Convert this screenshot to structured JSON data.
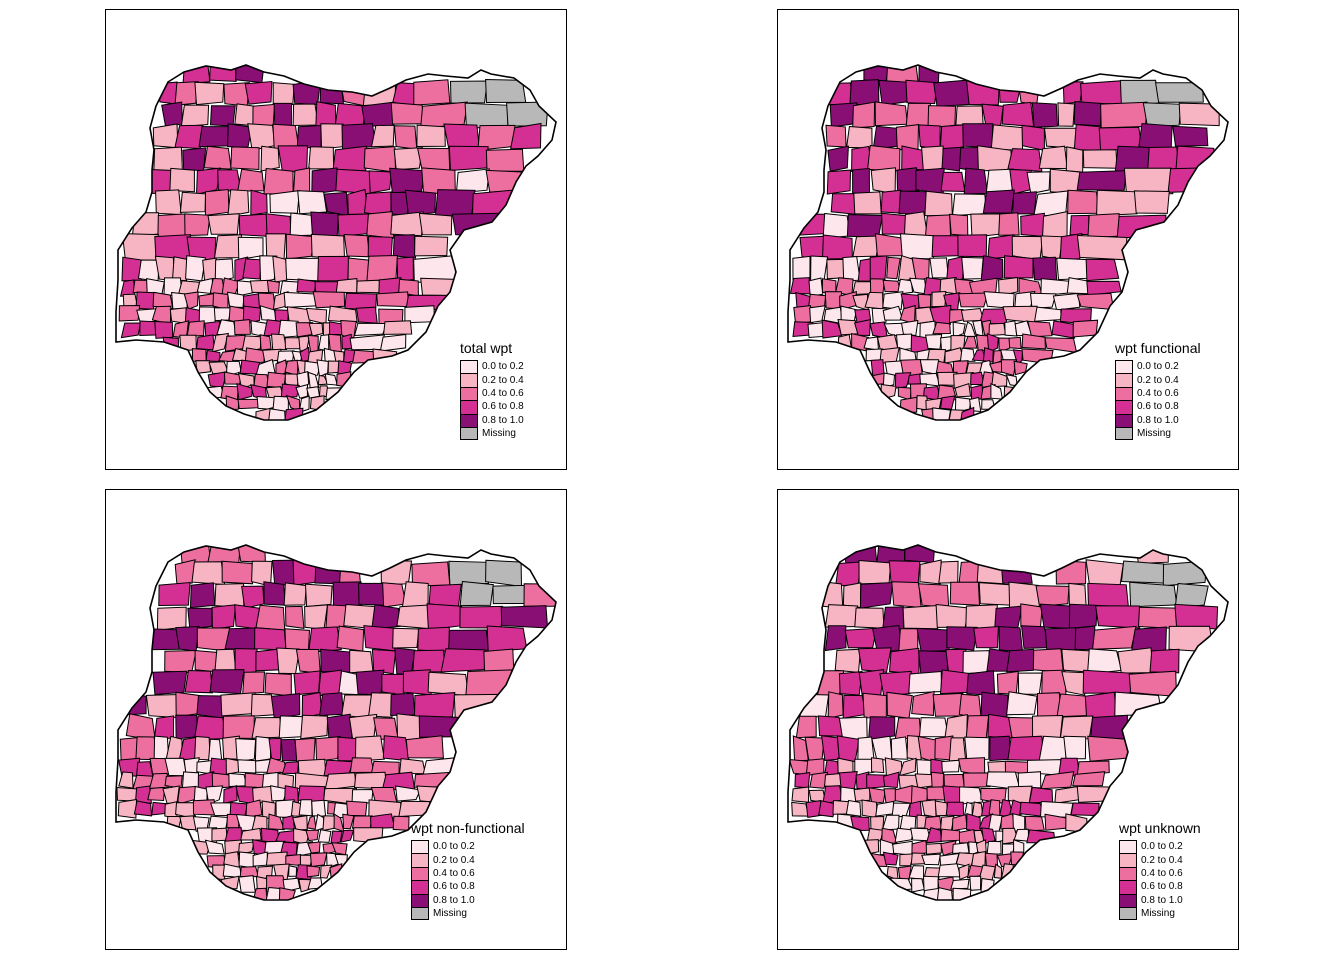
{
  "palette": {
    "class_colors": [
      "#fde6ec",
      "#f7b5c3",
      "#ec6fa0",
      "#d42f92",
      "#8a0f75"
    ],
    "missing_color": "#b8b8b8",
    "border_color": "#000000"
  },
  "legend_labels": [
    "0.0 to 0.2",
    "0.2 to 0.4",
    "0.4 to 0.6",
    "0.6 to 0.8",
    "0.8 to 1.0",
    "Missing"
  ],
  "panels": [
    {
      "id": "total",
      "legend_title": "total wpt"
    },
    {
      "id": "functional",
      "legend_title": "wpt functional"
    },
    {
      "id": "nonfunctional",
      "legend_title": "wpt non-functional"
    },
    {
      "id": "unknown",
      "legend_title": "wpt unknown"
    }
  ]
}
